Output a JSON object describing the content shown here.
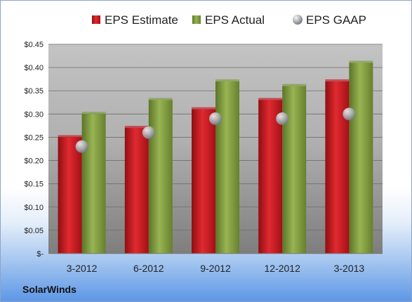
{
  "chart_data": {
    "type": "bar",
    "categories": [
      "3-2012",
      "6-2012",
      "9-2012",
      "12-2012",
      "3-2013"
    ],
    "series": [
      {
        "name": "EPS Estimate",
        "kind": "bar",
        "color": "#c8141c",
        "values": [
          0.25,
          0.27,
          0.31,
          0.33,
          0.37
        ]
      },
      {
        "name": "EPS Actual",
        "kind": "bar",
        "color": "#7d9a3c",
        "values": [
          0.3,
          0.33,
          0.37,
          0.36,
          0.41
        ]
      },
      {
        "name": "EPS GAAP",
        "kind": "marker",
        "color": "#9aa3ad",
        "values": [
          0.23,
          0.26,
          0.29,
          0.29,
          0.3
        ]
      }
    ],
    "ylim": [
      0,
      0.45
    ],
    "yticks": [
      0,
      0.05,
      0.1,
      0.15,
      0.2,
      0.25,
      0.3,
      0.35,
      0.4,
      0.45
    ],
    "ytick_labels": [
      "$-",
      "$0.05",
      "$0.10",
      "$0.15",
      "$0.20",
      "$0.25",
      "$0.30",
      "$0.35",
      "$0.40",
      "$0.45"
    ],
    "grid": true,
    "legend_position": "top"
  },
  "footer": {
    "company": "SolarWinds"
  }
}
